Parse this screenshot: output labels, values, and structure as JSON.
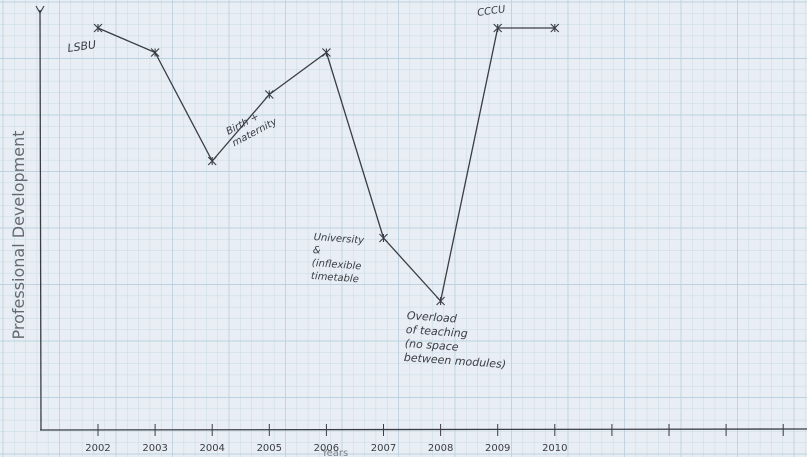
{
  "chart_data": {
    "type": "line",
    "title": "",
    "xlabel": "Years",
    "ylabel": "Professional Development",
    "categories": [
      "2002",
      "2003",
      "2004",
      "2005",
      "2006",
      "2007",
      "2008",
      "2009",
      "2010"
    ],
    "x_tick_labels": [
      "2002",
      "2003",
      "2004",
      "2005",
      "2006",
      "2007",
      "2008",
      "2009",
      "2010"
    ],
    "series": [
      {
        "values": [
          9.6,
          8.9,
          5.8,
          7.7,
          8.9,
          3.6,
          1.8,
          9.6,
          9.6
        ]
      }
    ],
    "ylim": [
      0,
      10
    ],
    "grid": true,
    "colors": {
      "paper": "#e8eef3",
      "grid": "#b9cfe0",
      "ink": "#3a3d44"
    },
    "annotations": [
      {
        "x": "2002",
        "lines": [
          "LSBU"
        ]
      },
      {
        "x": "2004",
        "lines": [
          "Birth +",
          "maternity"
        ]
      },
      {
        "x": "2007",
        "lines": [
          "University",
          "&",
          "(inflexible",
          "timetable"
        ]
      },
      {
        "x": "2008",
        "lines": [
          "Overload",
          "of teaching",
          "(no space",
          "between modules)"
        ]
      },
      {
        "x": "2009",
        "lines": [
          "CCCU"
        ]
      }
    ]
  }
}
